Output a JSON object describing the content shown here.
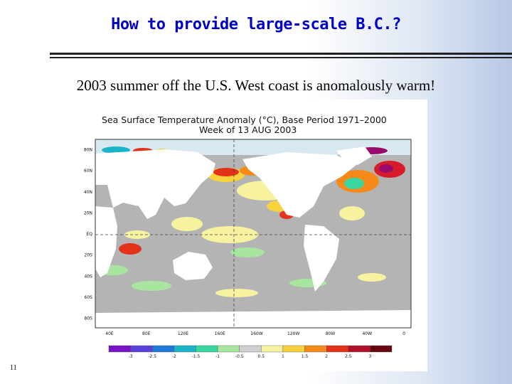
{
  "slide": {
    "title": "How to provide large-scale B.C.?",
    "subtitle": "2003 summer off the U.S. West coast is anomalously warm!",
    "number": "11"
  },
  "figure": {
    "title_line1": "Sea Surface Temperature Anomaly (°C), Base Period 1971–2000",
    "title_line2": "Week of 13 AUG 2003",
    "lat_labels": [
      "80N",
      "60N",
      "40N",
      "20N",
      "EQ",
      "20S",
      "40S",
      "60S",
      "80S"
    ],
    "lon_labels": [
      "40E",
      "80E",
      "120E",
      "160E",
      "160W",
      "120W",
      "80W",
      "40W",
      "0"
    ],
    "colorbar": {
      "labels": [
        "-3",
        "-2.5",
        "-2",
        "-1.5",
        "-1",
        "-0.5",
        "0.5",
        "1",
        "1.5",
        "2",
        "2.5",
        "3"
      ],
      "colors": [
        "#7a12c8",
        "#5a3fd8",
        "#1e78d8",
        "#19b4c8",
        "#38d7a0",
        "#a8e6a0",
        "#cfcfcf",
        "#f6f2a0",
        "#f7d23c",
        "#f58a1a",
        "#e2321a",
        "#b0102a",
        "#6a0610"
      ]
    },
    "colors": {
      "ocean_neutral": "#b4b4b4",
      "land": "#ffffff",
      "warm_light": "#f6f2a0",
      "warm_mid": "#f7d23c",
      "warm_strong": "#f58a1a",
      "warm_hot": "#d81b2a",
      "very_hot": "#9a0a6a",
      "cool_light": "#a8e6a0",
      "cool_mid": "#38d7a0",
      "cool_strong": "#19b4c8"
    }
  }
}
